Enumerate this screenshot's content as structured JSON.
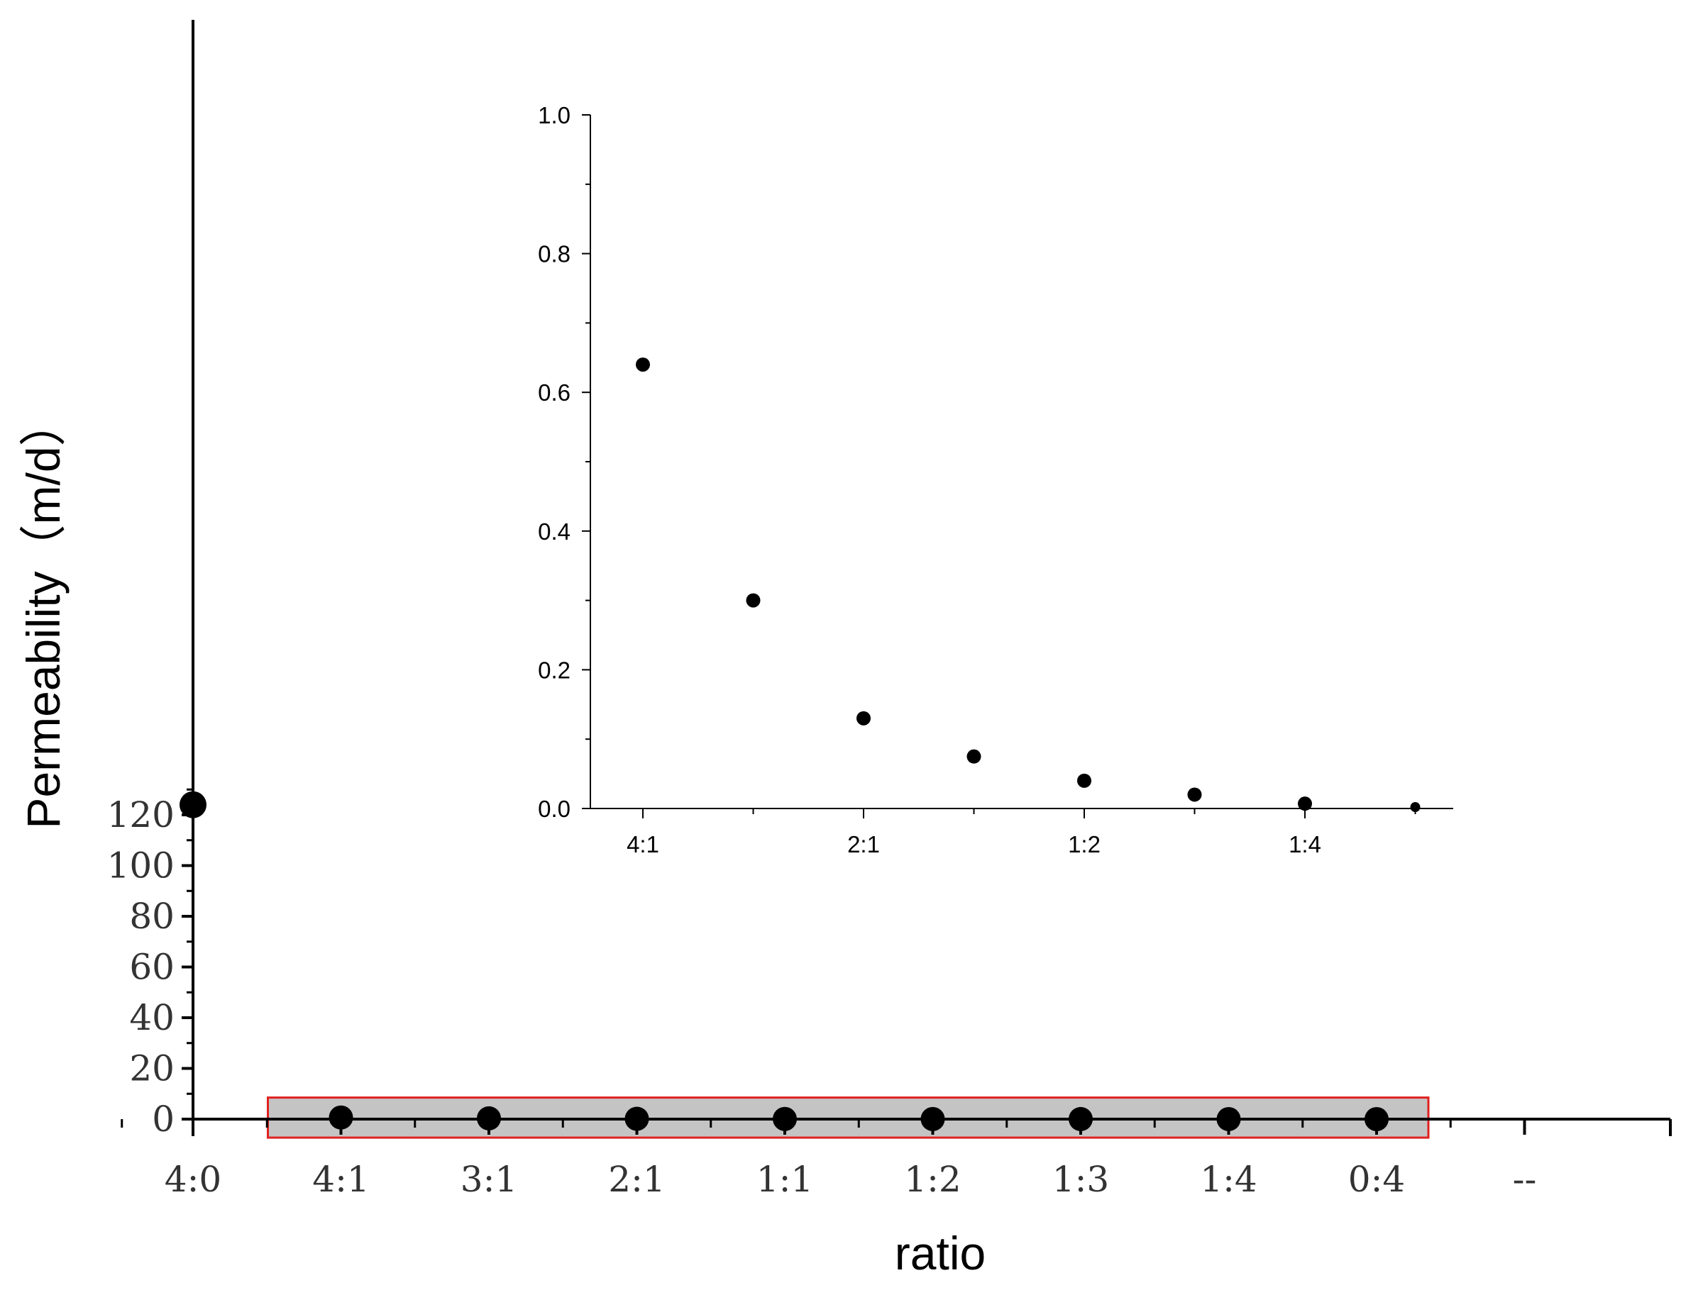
{
  "chart_data": [
    {
      "type": "scatter",
      "xlabel": "ratio",
      "ylabel": "Permeability（m/d）",
      "categories": [
        "4:0",
        "4:1",
        "3:1",
        "2:1",
        "1:1",
        "1:2",
        "1:3",
        "1:4",
        "0:4",
        "--"
      ],
      "y_ticks": [
        0,
        20,
        40,
        60,
        80,
        100,
        120
      ],
      "ylim": [
        -3,
        130
      ],
      "grid": false,
      "series": [
        {
          "x": [
            "4:0",
            "4:1",
            "3:1",
            "2:1",
            "1:1",
            "1:2",
            "1:3",
            "1:4",
            "0:4"
          ],
          "values": [
            124,
            0.64,
            0.3,
            0.13,
            0.075,
            0.04,
            0.02,
            0.007,
            0.002
          ]
        }
      ],
      "highlight": {
        "from": "4:1",
        "to": "0:4",
        "ylim": [
          -7.3,
          8.5
        ],
        "fill": "#c4c4c4",
        "stroke": "#e02020"
      }
    },
    {
      "type": "scatter",
      "categories": [
        "4:1",
        "3:1",
        "2:1",
        "1:1",
        "1:2",
        "1:3",
        "1:4",
        "0:4"
      ],
      "tick_labels": [
        "4:1",
        "",
        "2:1",
        "",
        "1:2",
        "",
        "1:4",
        ""
      ],
      "y_ticks": [
        "0.0",
        "0.2",
        "0.4",
        "0.6",
        "0.8",
        "1.0"
      ],
      "ylim": [
        0,
        1.0
      ],
      "grid": false,
      "series": [
        {
          "values": [
            0.64,
            0.3,
            0.13,
            0.075,
            0.04,
            0.02,
            0.007,
            0.002
          ]
        }
      ]
    }
  ]
}
